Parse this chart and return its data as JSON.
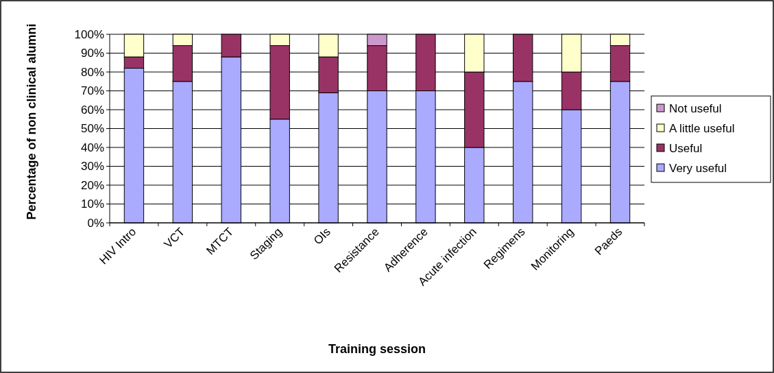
{
  "chart_data": {
    "type": "bar",
    "stacked": true,
    "xlabel": "Training session",
    "ylabel": "Percentage of non clinical alumni",
    "categories": [
      "HIV Intro",
      "VCT",
      "MTCT",
      "Staging",
      "OIs",
      "Resistance",
      "Adherence",
      "Acute infection",
      "Regimens",
      "Monitoring",
      "Paeds"
    ],
    "series": [
      {
        "name": "Very useful",
        "color": "#aaaaff",
        "values": [
          82,
          75,
          88,
          55,
          69,
          70,
          70,
          40,
          75,
          60,
          75
        ]
      },
      {
        "name": "Useful",
        "color": "#993366",
        "values": [
          6,
          19,
          12,
          39,
          19,
          24,
          30,
          40,
          25,
          20,
          19
        ]
      },
      {
        "name": "A little useful",
        "color": "#ffffcc",
        "values": [
          12,
          6,
          0,
          6,
          12,
          0,
          0,
          20,
          0,
          20,
          6
        ]
      },
      {
        "name": "Not useful",
        "color": "#cc99cc",
        "values": [
          0,
          0,
          0,
          0,
          0,
          6,
          0,
          0,
          0,
          0,
          0
        ]
      }
    ],
    "ylim": [
      0,
      100
    ],
    "yticks": [
      {
        "value": 0,
        "label": "0%"
      },
      {
        "value": 10,
        "label": "10%"
      },
      {
        "value": 20,
        "label": "20%"
      },
      {
        "value": 30,
        "label": "30%"
      },
      {
        "value": 40,
        "label": "40%"
      },
      {
        "value": 50,
        "label": "50%"
      },
      {
        "value": 60,
        "label": "60%"
      },
      {
        "value": 70,
        "label": "70%"
      },
      {
        "value": 80,
        "label": "80%"
      },
      {
        "value": 90,
        "label": "90%"
      },
      {
        "value": 100,
        "label": "100%"
      }
    ],
    "grid": "y",
    "legend": "right"
  }
}
